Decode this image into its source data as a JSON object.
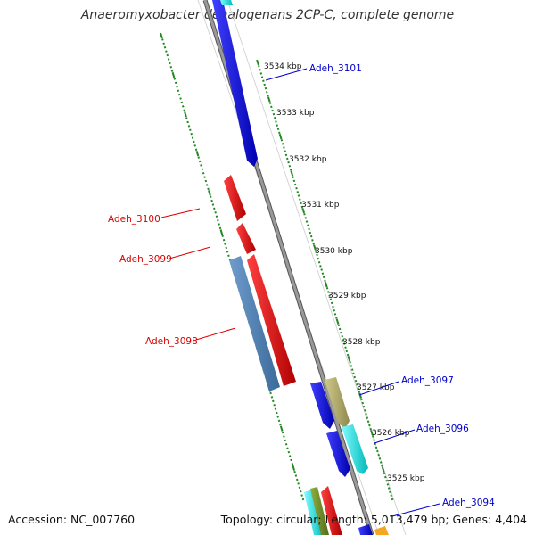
{
  "title": "Anaeromyxobacter dehalogenans 2CP-C, complete genome",
  "footer": {
    "accession": "Accession: NC_007760",
    "stats": "Topology: circular; Length: 5,013,479 bp; Genes: 4,404"
  },
  "ticks": [
    "3534 kbp",
    "3533 kbp",
    "3532 kbp",
    "3531 kbp",
    "3530 kbp",
    "3529 kbp",
    "3528 kbp",
    "3527 kbp",
    "3526 kbp",
    "3525 kbp"
  ],
  "gene_labels": [
    {
      "name": "Adeh_3101",
      "strand": "forward",
      "color": "#0000cc"
    },
    {
      "name": "Adeh_3100",
      "strand": "reverse",
      "color": "#dd0000"
    },
    {
      "name": "Adeh_3099",
      "strand": "reverse",
      "color": "#dd0000"
    },
    {
      "name": "Adeh_3098",
      "strand": "reverse",
      "color": "#dd0000"
    },
    {
      "name": "Adeh_3097",
      "strand": "forward",
      "color": "#0000cc"
    },
    {
      "name": "Adeh_3096",
      "strand": "forward",
      "color": "#0000cc"
    },
    {
      "name": "Adeh_3094",
      "strand": "forward",
      "color": "#0000cc"
    }
  ],
  "colors": {
    "backbone": "#888888",
    "tick_marks": "#228822",
    "gene_blue": "#0000ee",
    "gene_red": "#ee0000",
    "gene_steelblue": "#4a7db0",
    "gene_olive": "#b3ad6e",
    "gene_cyan": "#00dddd",
    "gene_green": "#6b8e23",
    "gene_orange": "#f5a623"
  }
}
